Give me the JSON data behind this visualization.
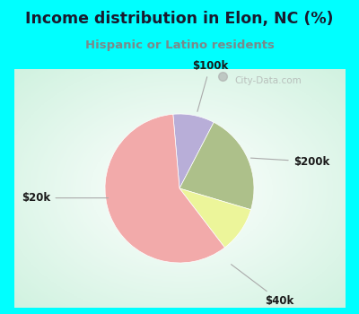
{
  "title": "Income distribution in Elon, NC (%)",
  "subtitle": "Hispanic or Latino residents",
  "slices": [
    {
      "label": "$100k",
      "value": 9,
      "color": "#b8aed8"
    },
    {
      "label": "$200k",
      "value": 22,
      "color": "#adc08a"
    },
    {
      "label": "$40k",
      "value": 10,
      "color": "#ecf59a"
    },
    {
      "label": "$20k",
      "value": 59,
      "color": "#f2aaaa"
    }
  ],
  "bg_outer": "#00ffff",
  "title_color": "#1a1a2e",
  "subtitle_color": "#7a8a8a",
  "label_color": "#1a1a1a",
  "watermark": "City-Data.com",
  "startangle": 95
}
